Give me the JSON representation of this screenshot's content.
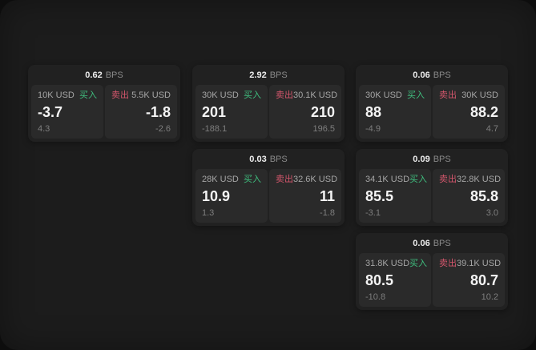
{
  "labels": {
    "buy": "买入",
    "sell": "卖出",
    "bps_unit": "BPS"
  },
  "colors": {
    "buy_green": "#3fbf7f",
    "sell_red": "#d4566c",
    "window_bg": "#1c1c1c",
    "card_bg": "#212121",
    "panel_bg": "#2a2a2a"
  },
  "cards": [
    {
      "bps": "0.62",
      "buy_amount": "10K USD",
      "buy_value": "-3.7",
      "buy_sub": "4.3",
      "sell_amount": "5.5K USD",
      "sell_value": "-1.8",
      "sell_sub": "-2.6"
    },
    {
      "bps": "2.92",
      "buy_amount": "30K USD",
      "buy_value": "201",
      "buy_sub": "-188.1",
      "sell_amount": "30.1K USD",
      "sell_value": "210",
      "sell_sub": "196.5"
    },
    {
      "bps": "0.06",
      "buy_amount": "30K USD",
      "buy_value": "88",
      "buy_sub": "-4.9",
      "sell_amount": "30K USD",
      "sell_value": "88.2",
      "sell_sub": "4.7"
    },
    {
      "bps": "0.03",
      "buy_amount": "28K USD",
      "buy_value": "10.9",
      "buy_sub": "1.3",
      "sell_amount": "32.6K USD",
      "sell_value": "11",
      "sell_sub": "-1.8"
    },
    {
      "bps": "0.09",
      "buy_amount": "34.1K USD",
      "buy_value": "85.5",
      "buy_sub": "-3.1",
      "sell_amount": "32.8K USD",
      "sell_value": "85.8",
      "sell_sub": "3.0"
    },
    {
      "bps": "0.06",
      "buy_amount": "31.8K USD",
      "buy_value": "80.5",
      "buy_sub": "-10.8",
      "sell_amount": "39.1K USD",
      "sell_value": "80.7",
      "sell_sub": "10.2"
    }
  ]
}
